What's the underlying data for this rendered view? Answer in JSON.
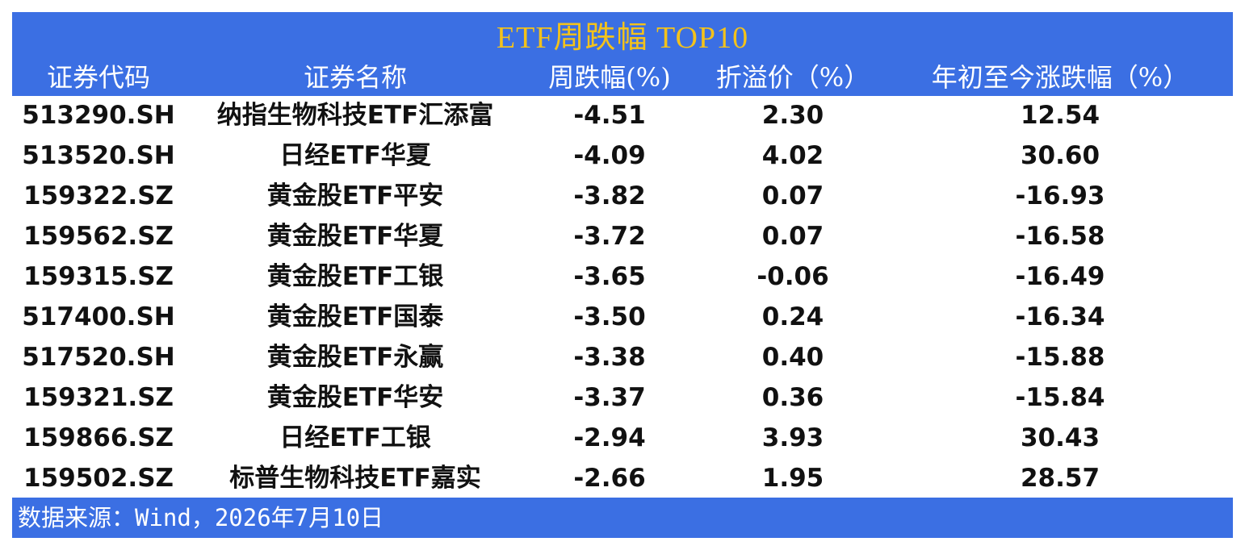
{
  "header": {
    "title": "ETF周跌幅 TOP10"
  },
  "table": {
    "columns": [
      "证券代码",
      "证券名称",
      "周跌幅(%)",
      "折溢价（%）",
      "年初至今涨跌幅（%）"
    ],
    "rows": [
      [
        "513290.SH",
        "纳指生物科技ETF汇添富",
        "-4.51",
        "2.30",
        "12.54"
      ],
      [
        "513520.SH",
        "日经ETF华夏",
        "-4.09",
        "4.02",
        "30.60"
      ],
      [
        "159322.SZ",
        "黄金股ETF平安",
        "-3.82",
        "0.07",
        "-16.93"
      ],
      [
        "159562.SZ",
        "黄金股ETF华夏",
        "-3.72",
        "0.07",
        "-16.58"
      ],
      [
        "159315.SZ",
        "黄金股ETF工银",
        "-3.65",
        "-0.06",
        "-16.49"
      ],
      [
        "517400.SH",
        "黄金股ETF国泰",
        "-3.50",
        "0.24",
        "-16.34"
      ],
      [
        "517520.SH",
        "黄金股ETF永赢",
        "-3.38",
        "0.40",
        "-15.88"
      ],
      [
        "159321.SZ",
        "黄金股ETF华安",
        "-3.37",
        "0.36",
        "-15.84"
      ],
      [
        "159866.SZ",
        "日经ETF工银",
        "-2.94",
        "3.93",
        "30.43"
      ],
      [
        "159502.SZ",
        "标普生物科技ETF嘉实",
        "-2.66",
        "1.95",
        "28.57"
      ]
    ]
  },
  "footer": {
    "source": "数据来源：Wind，2026年7月10日"
  }
}
